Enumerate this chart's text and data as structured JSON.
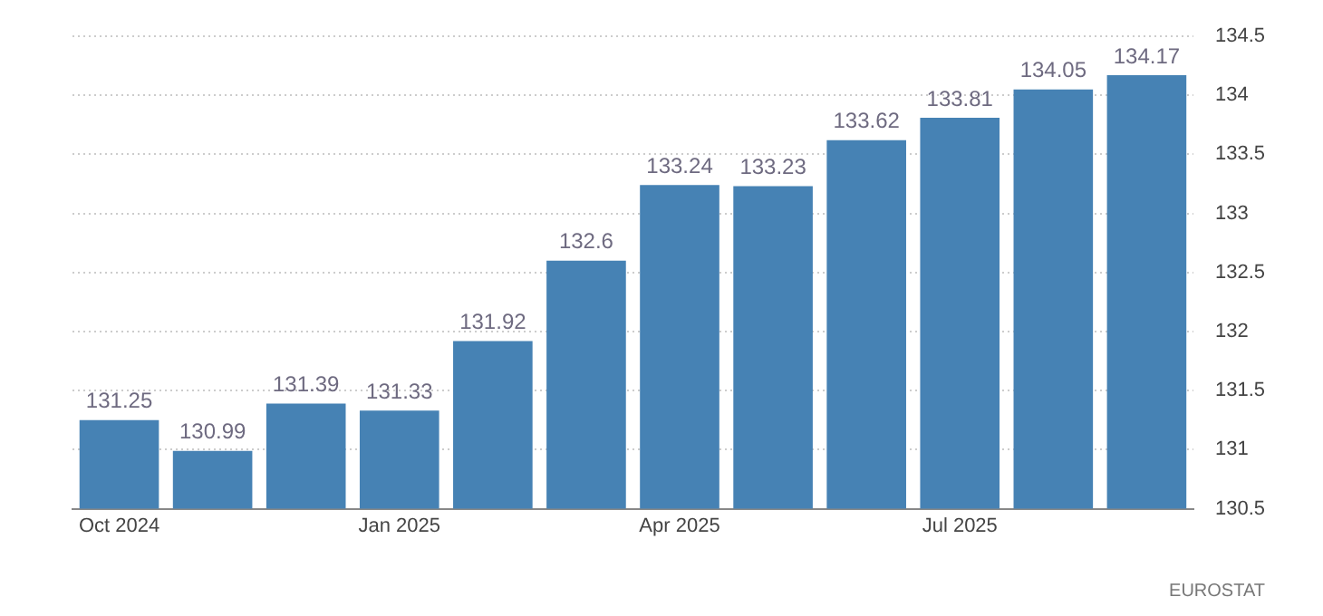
{
  "chart_data": {
    "type": "bar",
    "categories": [
      "Oct 2024",
      null,
      null,
      "Jan 2025",
      null,
      null,
      "Apr 2025",
      null,
      null,
      "Jul 2025",
      null,
      null
    ],
    "values": [
      131.25,
      130.99,
      131.39,
      131.33,
      131.92,
      132.6,
      133.24,
      133.23,
      133.62,
      133.81,
      134.05,
      134.17
    ],
    "color": "#4682b4",
    "ylim": [
      130.5,
      134.5
    ],
    "yticks": [
      130.5,
      131,
      131.5,
      132,
      132.5,
      133,
      133.5,
      134,
      134.5
    ],
    "grid": "y",
    "data_labels": true,
    "annotations": [
      "EUROSTAT"
    ]
  }
}
